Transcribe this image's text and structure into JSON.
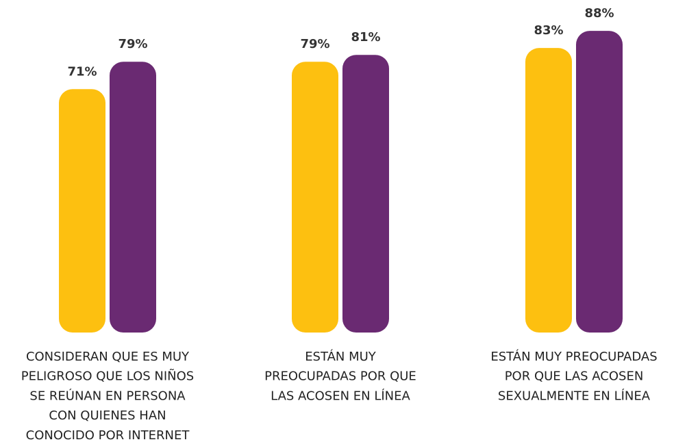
{
  "chart_data": {
    "type": "bar",
    "categories": [
      [
        "CONSIDERAN QUE ES MUY",
        "PELIGROSO QUE LOS NIÑOS",
        "SE REÚNAN EN PERSONA",
        "CON QUIENES HAN",
        "CONOCIDO POR INTERNET"
      ],
      [
        "ESTÁN MUY",
        "PREOCUPADAS POR QUE",
        "LAS ACOSEN EN LÍNEA"
      ],
      [
        "ESTÁN MUY PREOCUPADAS",
        "POR QUE LAS ACOSEN",
        "SEXUALMENTE EN LÍNEA"
      ]
    ],
    "series": [
      {
        "color": "#FDC010",
        "values": [
          71,
          79,
          83
        ],
        "value_labels": [
          "71%",
          "79%",
          "83%"
        ]
      },
      {
        "color": "#6A2A72",
        "values": [
          79,
          81,
          88
        ],
        "value_labels": [
          "79%",
          "81%",
          "88%"
        ]
      }
    ]
  }
}
